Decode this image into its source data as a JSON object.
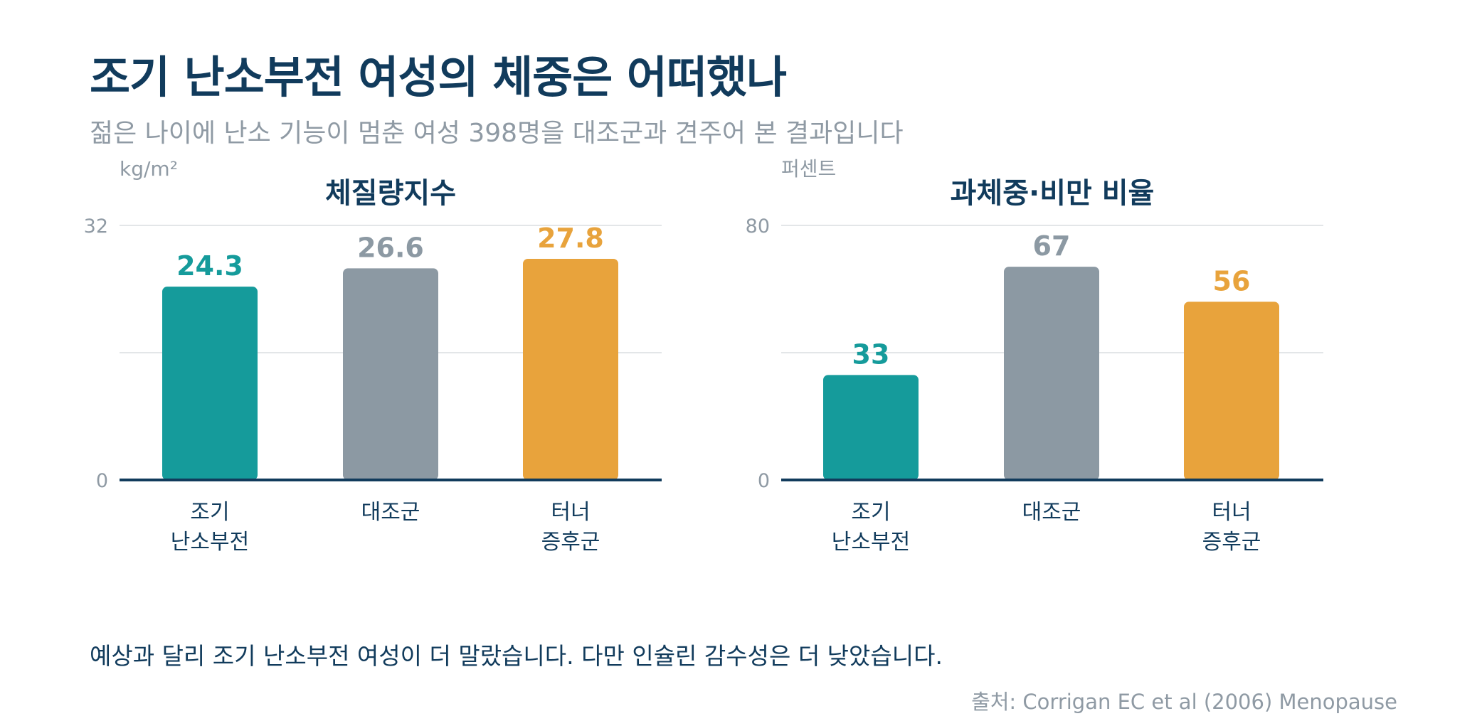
{
  "header": {
    "title": "조기 난소부전 여성의 체중은 어떠했나",
    "subtitle": "젊은 나이에 난소 기능이 멈춘 여성 398명을 대조군과 견주어 본 결과입니다"
  },
  "colors": {
    "teal": "#159b9b",
    "gray": "#8c99a3",
    "orange": "#e8a33c",
    "navy": "#113b5c",
    "muted": "#8f9aa4",
    "grid": "#e3e6e8"
  },
  "chart_data": [
    {
      "type": "bar",
      "title": "체질량지수",
      "unit": "kg/m²",
      "categories": [
        [
          "조기",
          "난소부전"
        ],
        [
          "대조군"
        ],
        [
          "터너",
          "증후군"
        ]
      ],
      "values": [
        24.3,
        26.6,
        27.8
      ],
      "value_labels": [
        "24.3",
        "26.6",
        "27.8"
      ],
      "bar_colors": [
        "#159b9b",
        "#8c99a3",
        "#e8a33c"
      ],
      "ylim": [
        0,
        32
      ],
      "yticks": [
        "0",
        "32"
      ],
      "grid_midline": 16,
      "grid": true
    },
    {
      "type": "bar",
      "title": "과체중·비만 비율",
      "unit": "퍼센트",
      "categories": [
        [
          "조기",
          "난소부전"
        ],
        [
          "대조군"
        ],
        [
          "터너",
          "증후군"
        ]
      ],
      "values": [
        33,
        67,
        56
      ],
      "value_labels": [
        "33",
        "67",
        "56"
      ],
      "bar_colors": [
        "#159b9b",
        "#8c99a3",
        "#e8a33c"
      ],
      "ylim": [
        0,
        80
      ],
      "yticks": [
        "0",
        "80"
      ],
      "grid_midline": 40,
      "grid": true
    }
  ],
  "footer": {
    "takeaway": "예상과 달리 조기 난소부전 여성이 더 말랐습니다. 다만 인슐린 감수성은 더 낮았습니다.",
    "source": "출처: Corrigan EC et al (2006) Menopause"
  }
}
